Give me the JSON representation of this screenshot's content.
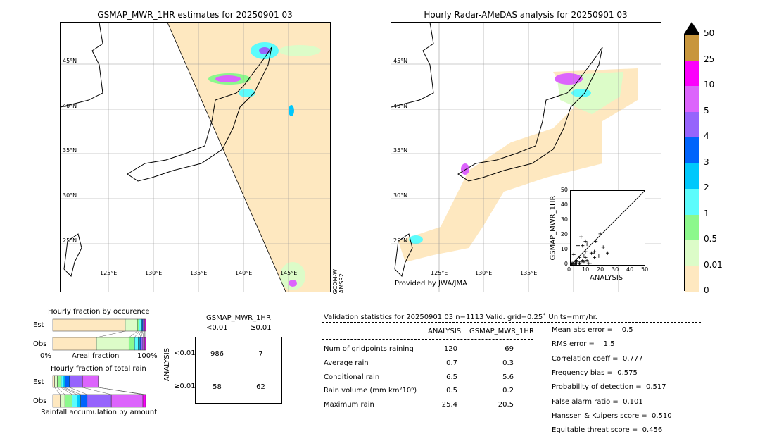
{
  "left_map": {
    "title": "GSMAP_MWR_1HR estimates for 20250901 03",
    "side_label_1": "GCOM-W",
    "side_label_2": "AMSR2",
    "lat_labels": [
      "45°N",
      "40°N",
      "35°N",
      "30°N",
      "25°N"
    ],
    "lon_labels": [
      "125°E",
      "130°E",
      "135°E",
      "140°E",
      "145°E"
    ]
  },
  "right_map": {
    "title": "Hourly Radar-AMeDAS analysis for 20250901 03",
    "credit": "Provided by JWA/JMA",
    "lat_labels": [
      "45°N",
      "40°N",
      "35°N",
      "30°N",
      "25°N"
    ],
    "lon_labels": [
      "125°E",
      "130°E",
      "135°E"
    ]
  },
  "colorbar": {
    "labels": [
      "50",
      "25",
      "10",
      "5",
      "4",
      "3",
      "2",
      "1",
      "0.5",
      "0.01",
      "0"
    ],
    "colors": [
      "#c8963c",
      "#fc00fc",
      "#dc64fc",
      "#9664fc",
      "#0064fc",
      "#00c8fc",
      "#5cfcfc",
      "#8cf88c",
      "#dcfcc8",
      "#fee8c0"
    ],
    "extend_color": "#000000"
  },
  "scatter": {
    "xlabel": "ANALYSIS",
    "ylabel": "GSMAP_MWR_1HR",
    "ticks": [
      "0",
      "10",
      "20",
      "30",
      "40",
      "50"
    ],
    "range": [
      0,
      50
    ],
    "points": [
      [
        5,
        13
      ],
      [
        7,
        19
      ],
      [
        10,
        16
      ],
      [
        11,
        14
      ],
      [
        8,
        13
      ],
      [
        14,
        8
      ],
      [
        15,
        8
      ],
      [
        16,
        9
      ],
      [
        15,
        6
      ],
      [
        19,
        6
      ],
      [
        22,
        12
      ],
      [
        25,
        8
      ],
      [
        17,
        16
      ],
      [
        20,
        21
      ],
      [
        2,
        7
      ],
      [
        3,
        2
      ],
      [
        5,
        4
      ],
      [
        6,
        5
      ],
      [
        8,
        3
      ],
      [
        9,
        2
      ],
      [
        10,
        5
      ],
      [
        12,
        1
      ],
      [
        4,
        1
      ],
      [
        1,
        0.5
      ],
      [
        2,
        1
      ],
      [
        3,
        0.5
      ],
      [
        6,
        1
      ],
      [
        7,
        2
      ],
      [
        9,
        6
      ],
      [
        10,
        9
      ],
      [
        13,
        1
      ],
      [
        11,
        3
      ],
      [
        16,
        5
      ],
      [
        1,
        1
      ],
      [
        0.5,
        0.5
      ],
      [
        2,
        0.3
      ],
      [
        4,
        3
      ],
      [
        5,
        2
      ],
      [
        6,
        0.5
      ]
    ]
  },
  "occurrence": {
    "title": "Hourly fraction by occurence",
    "est_label": "Est",
    "obs_label": "Obs",
    "axis_left": "0%",
    "axis_mid": "Areal fraction",
    "axis_right": "100%",
    "est": [
      0.78,
      0.13,
      0.02,
      0.02,
      0.01,
      0.01,
      0.01,
      0.01,
      0.01
    ],
    "obs": [
      0.47,
      0.35,
      0.06,
      0.04,
      0.02,
      0.01,
      0.02,
      0.02,
      0.01
    ]
  },
  "total_rain": {
    "title": "Hourly fraction of total rain",
    "est_label": "Est",
    "obs_label": "Obs",
    "footer": "Rainfall accumulation by amount",
    "est_total": 0.49,
    "est": [
      0.02,
      0.03,
      0.04,
      0.02,
      0.02,
      0.05,
      0.14,
      0.17,
      0
    ],
    "obs": [
      0.08,
      0.05,
      0.08,
      0.05,
      0.04,
      0.07,
      0.26,
      0.34,
      0.03
    ]
  },
  "contingency": {
    "title": "GSMAP_MWR_1HR",
    "col1": "<0.01",
    "col2": "≥0.01",
    "row_axis": "ANALYSIS",
    "row1": "<0.01",
    "row2": "≥0.01",
    "cells": [
      [
        "986",
        "7"
      ],
      [
        "58",
        "62"
      ]
    ]
  },
  "stats": {
    "header": "Validation statistics for 20250901 03  n=1113 Valid. grid=0.25˚ Units=mm/hr.",
    "col1": "ANALYSIS",
    "col2": "GSMAP_MWR_1HR",
    "rows": [
      {
        "label": "Num of gridpoints raining",
        "a": "120",
        "b": "69"
      },
      {
        "label": "Average rain",
        "a": "0.7",
        "b": "0.3"
      },
      {
        "label": "Conditional rain",
        "a": "6.5",
        "b": "5.6"
      },
      {
        "label": "Rain volume (mm km²10⁶)",
        "a": "0.5",
        "b": "0.2"
      },
      {
        "label": "Maximum rain",
        "a": "25.4",
        "b": "20.5"
      }
    ],
    "scores": [
      "Mean abs error =    0.5",
      "RMS error =    1.5",
      "Correlation coeff =  0.777",
      "Frequency bias =  0.575",
      "Probability of detection =  0.517",
      "False alarm ratio =  0.101",
      "Hanssen & Kuipers score =  0.510",
      "Equitable threat score =  0.456"
    ]
  }
}
